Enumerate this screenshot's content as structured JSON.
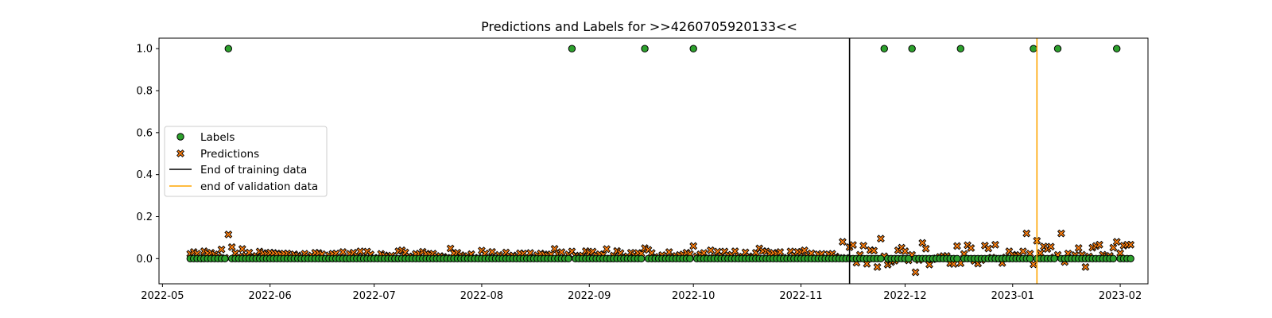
{
  "chart_data": {
    "type": "scatter",
    "title": "Predictions and Labels for >>4260705920133<<",
    "xlabel": "",
    "ylabel": "",
    "x_axis_type": "date",
    "xlim": [
      "2022-04-30",
      "2023-02-09"
    ],
    "ylim": [
      -0.12,
      1.05
    ],
    "x_ticks": [
      "2022-05",
      "2022-06",
      "2022-07",
      "2022-08",
      "2022-09",
      "2022-10",
      "2022-11",
      "2022-12",
      "2023-01",
      "2023-02"
    ],
    "x_tick_dates": [
      "2022-05-01",
      "2022-06-01",
      "2022-07-01",
      "2022-08-01",
      "2022-09-01",
      "2022-10-01",
      "2022-11-01",
      "2022-12-01",
      "2023-01-01",
      "2023-02-01"
    ],
    "y_ticks": [
      "0.0",
      "0.2",
      "0.4",
      "0.6",
      "0.8",
      "1.0"
    ],
    "y_tick_values": [
      0.0,
      0.2,
      0.4,
      0.6,
      0.8,
      1.0
    ],
    "grid": false,
    "legend_position": "center-left",
    "date_range": [
      "2022-05-09",
      "2023-02-04"
    ],
    "series": [
      {
        "name": "Labels",
        "marker": "circle",
        "color": "#2ca02c",
        "edge_color": "#000000",
        "baseline_value": 0.0,
        "positive_dates": [
          "2022-05-20",
          "2022-08-27",
          "2022-09-17",
          "2022-10-01",
          "2022-11-25",
          "2022-12-03",
          "2022-12-17",
          "2023-01-07",
          "2023-01-14",
          "2023-01-31"
        ],
        "positive_value": 1.0
      },
      {
        "name": "Predictions",
        "marker": "x-filled",
        "color": "#ff7f0e",
        "edge_color": "#000000",
        "typical_range_before_2022-11-15": [
          0.0,
          0.05
        ],
        "typical_range_after_2022-11-15": [
          -0.07,
          0.12
        ],
        "notable_points": [
          {
            "x": "2022-05-20",
            "y": 0.115
          },
          {
            "x": "2022-05-21",
            "y": 0.055
          },
          {
            "x": "2022-09-17",
            "y": 0.05
          },
          {
            "x": "2022-10-01",
            "y": 0.06
          },
          {
            "x": "2022-11-13",
            "y": 0.08
          },
          {
            "x": "2022-11-16",
            "y": 0.065
          },
          {
            "x": "2022-11-24",
            "y": 0.095
          },
          {
            "x": "2022-11-23",
            "y": -0.04
          },
          {
            "x": "2022-12-04",
            "y": -0.065
          },
          {
            "x": "2022-12-06",
            "y": 0.075
          },
          {
            "x": "2023-01-05",
            "y": 0.12
          },
          {
            "x": "2023-01-08",
            "y": 0.085
          },
          {
            "x": "2023-01-15",
            "y": 0.12
          },
          {
            "x": "2023-01-22",
            "y": -0.04
          },
          {
            "x": "2023-01-25",
            "y": 0.06
          },
          {
            "x": "2023-01-31",
            "y": 0.08
          }
        ]
      },
      {
        "name": "End of training data",
        "type": "vline",
        "color": "#000000",
        "x": "2022-11-15"
      },
      {
        "name": "end of validation data",
        "type": "vline",
        "color": "#ffa500",
        "x": "2023-01-08"
      }
    ]
  }
}
